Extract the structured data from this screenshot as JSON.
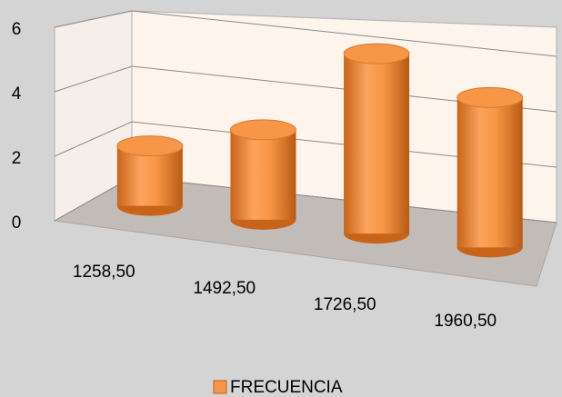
{
  "chart_data": {
    "type": "bar3d",
    "categories": [
      "1258,50",
      "1492,50",
      "1726,50",
      "1960,50"
    ],
    "series": [
      {
        "name": "FRECUENCIA",
        "color": "#f79646",
        "values": [
          2,
          3,
          6,
          5
        ]
      }
    ],
    "ylim": [
      0,
      6
    ],
    "yticks": [
      0,
      2,
      4,
      6
    ],
    "grid": true,
    "legend": "bottom"
  }
}
